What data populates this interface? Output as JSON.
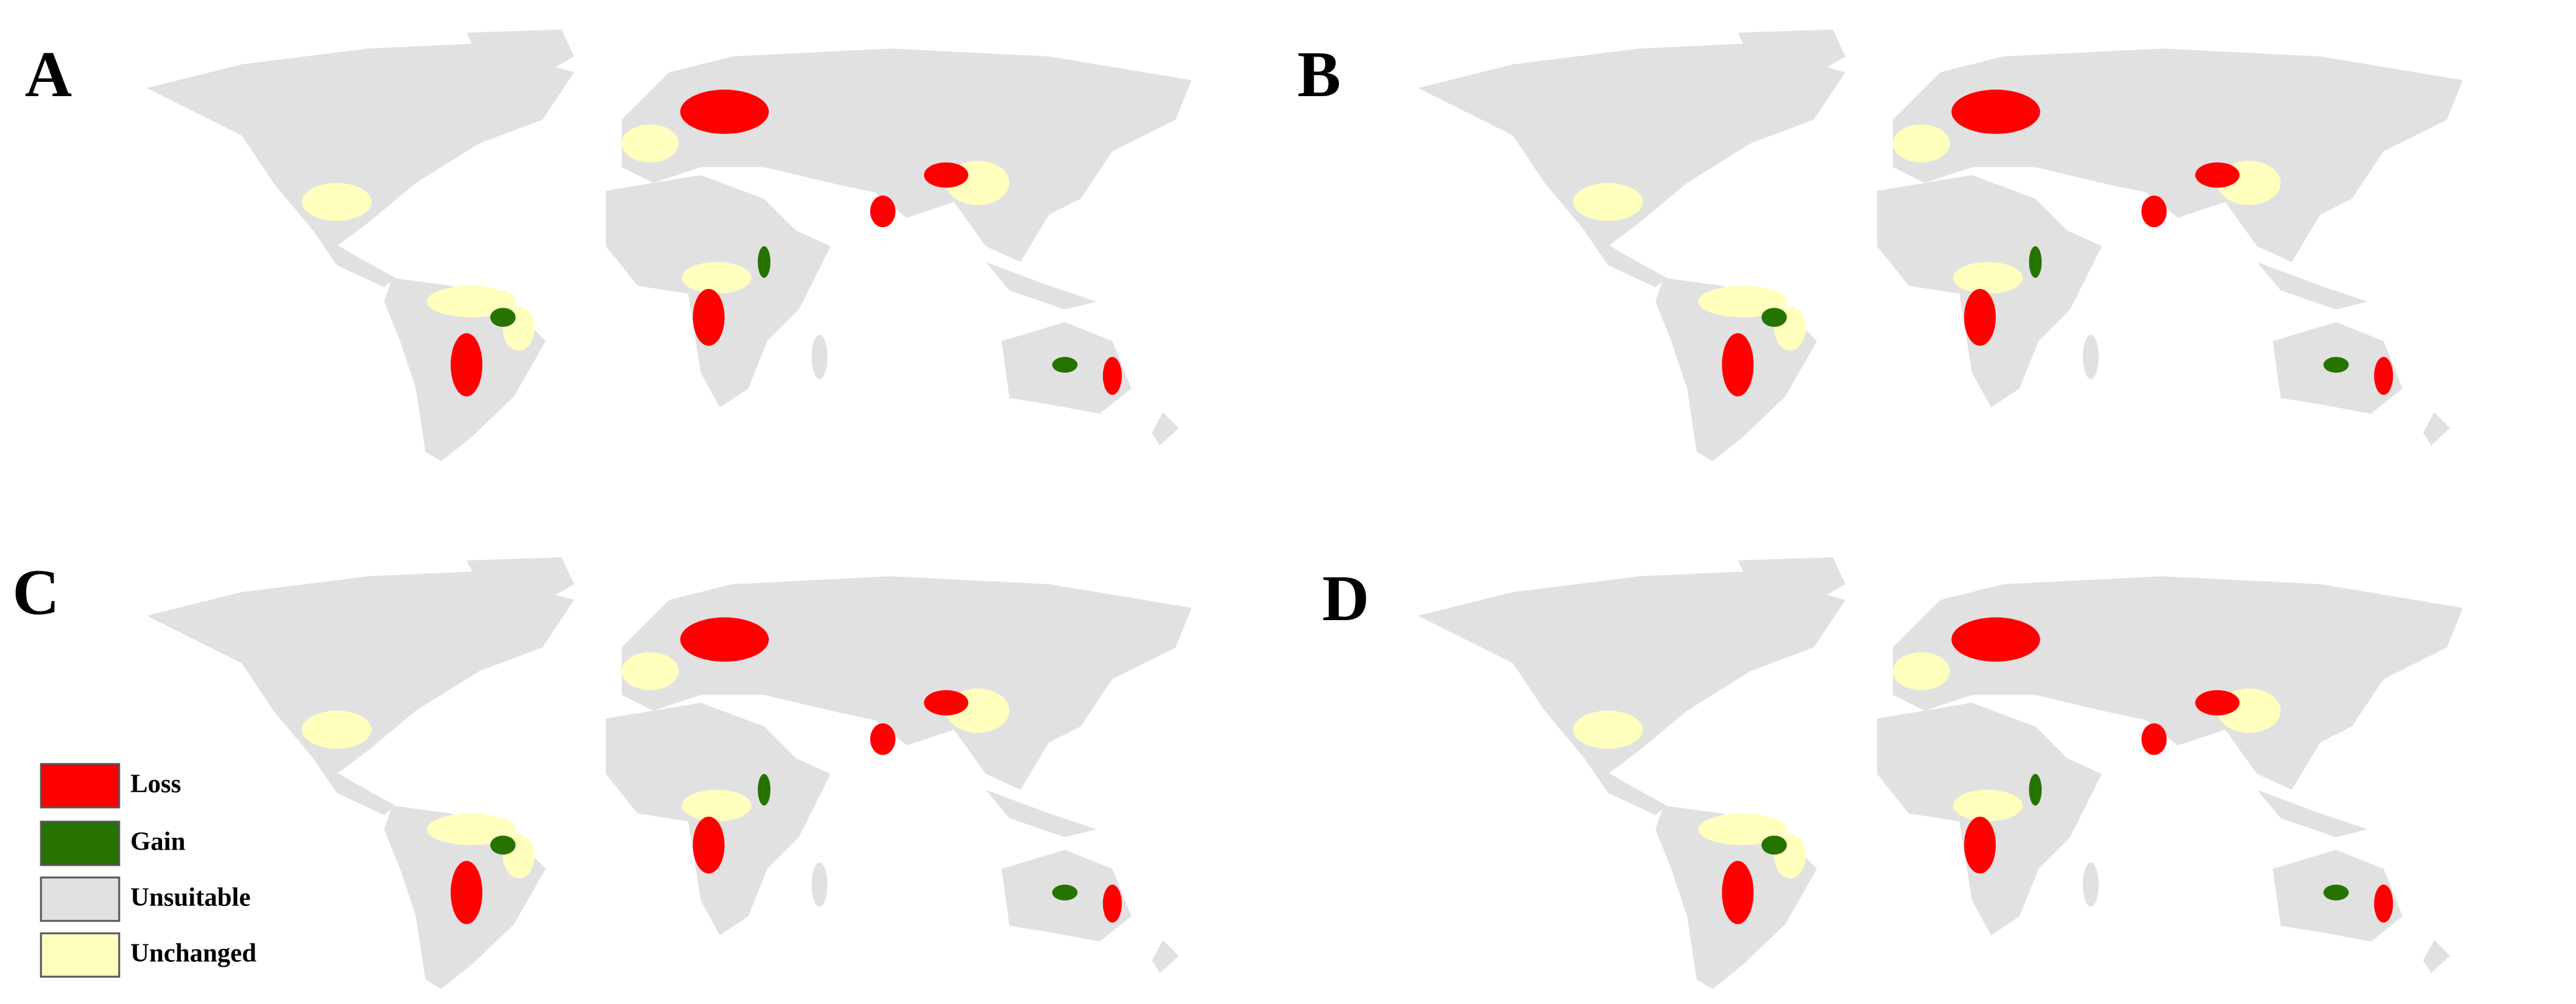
{
  "panels": [
    {
      "label": "A"
    },
    {
      "label": "B"
    },
    {
      "label": "C"
    },
    {
      "label": "D"
    }
  ],
  "legend": {
    "items": [
      {
        "label": "Loss",
        "color": "#ff0000"
      },
      {
        "label": "Gain",
        "color": "#267300"
      },
      {
        "label": "Unsuitable",
        "color": "#e1e1e1"
      },
      {
        "label": "Unchanged",
        "color": "#ffffbe"
      }
    ]
  }
}
